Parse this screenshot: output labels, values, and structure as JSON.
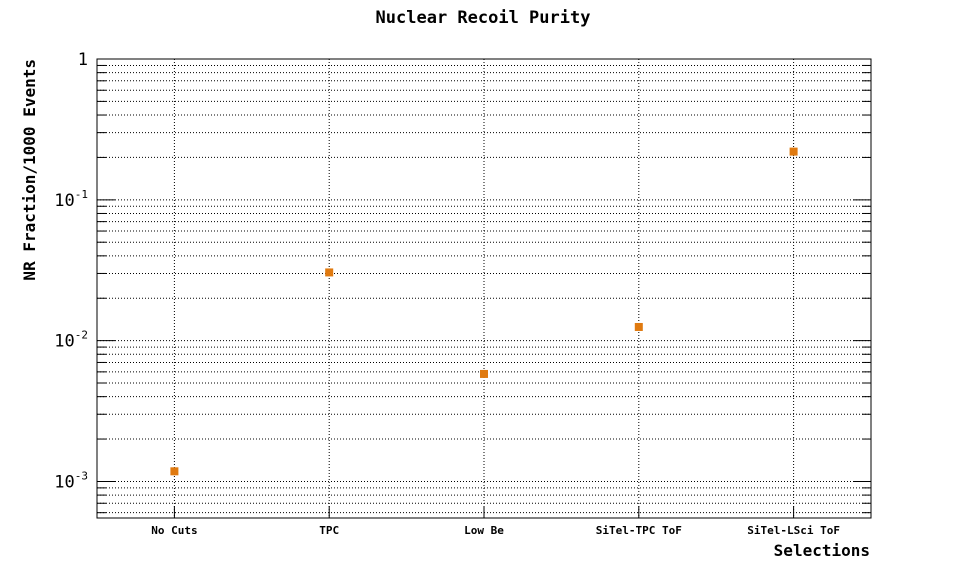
{
  "chart_data": {
    "type": "scatter",
    "title": "Nuclear Recoil Purity",
    "xlabel": "Selections",
    "ylabel": "NR Fraction/1000 Events",
    "categories": [
      "No Cuts",
      "TPC",
      "Low Be",
      "SiTel-TPC ToF",
      "SiTel-LSci ToF"
    ],
    "values": [
      0.00118,
      0.0305,
      0.0058,
      0.0125,
      0.22
    ],
    "ylim": [
      0.00055,
      1
    ],
    "yscale": "log",
    "y_tick_labels": [
      {
        "base": "10",
        "exp": "-3",
        "value": 0.001
      },
      {
        "base": "10",
        "exp": "-2",
        "value": 0.01
      },
      {
        "base": "10",
        "exp": "-1",
        "value": 0.1
      },
      {
        "base": "1",
        "exp": "",
        "value": 1
      }
    ],
    "grid": true,
    "marker": "square",
    "marker_color": "#e07a10"
  }
}
